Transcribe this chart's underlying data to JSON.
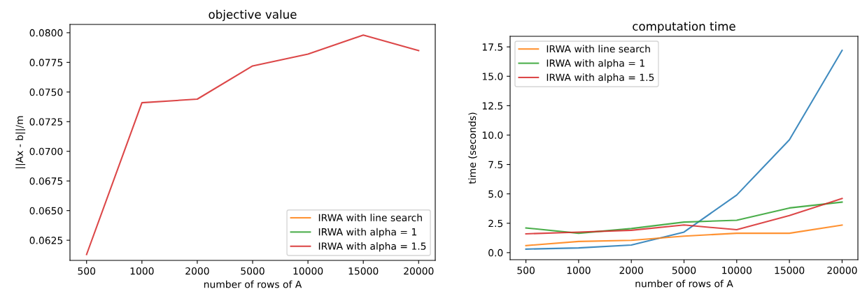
{
  "chart_data": [
    {
      "type": "line",
      "title": "objective value",
      "xlabel": "number of rows of A",
      "ylabel": "||Ax - b||/m",
      "categories": [
        "500",
        "1000",
        "2000",
        "5000",
        "10000",
        "15000",
        "20000"
      ],
      "ylim": [
        0.0608,
        0.0807
      ],
      "yticks": [
        {
          "value": 0.0625,
          "label": "0.0625"
        },
        {
          "value": 0.065,
          "label": "0.0650"
        },
        {
          "value": 0.0675,
          "label": "0.0675"
        },
        {
          "value": 0.07,
          "label": "0.0700"
        },
        {
          "value": 0.0725,
          "label": "0.0725"
        },
        {
          "value": 0.075,
          "label": "0.0750"
        },
        {
          "value": 0.0775,
          "label": "0.0775"
        },
        {
          "value": 0.08,
          "label": "0.0800"
        }
      ],
      "legend": "bottom right",
      "grid": false,
      "series": [
        {
          "color": "#1f77b4",
          "values": [
            null,
            null,
            null,
            null,
            null,
            null,
            null
          ]
        },
        {
          "name": "IRWA with line search",
          "color": "#ff7f0e",
          "values": [
            null,
            null,
            null,
            null,
            null,
            null,
            null
          ]
        },
        {
          "name": "IRWA with alpha = 1",
          "color": "#2ca02c",
          "values": [
            null,
            null,
            null,
            null,
            null,
            null,
            null
          ]
        },
        {
          "name": "IRWA with alpha = 1.5",
          "color": "#d62728",
          "values": [
            0.0613,
            0.0741,
            0.0744,
            0.0772,
            0.0782,
            0.0798,
            0.0785
          ]
        }
      ]
    },
    {
      "type": "line",
      "title": "computation time",
      "xlabel": "number of rows of A",
      "ylabel": "time (seconds)",
      "categories": [
        "500",
        "1000",
        "2000",
        "5000",
        "10000",
        "15000",
        "20000"
      ],
      "ylim": [
        -0.6,
        18.4
      ],
      "yticks": [
        {
          "value": 0,
          "label": "0.0"
        },
        {
          "value": 2.5,
          "label": "2.5"
        },
        {
          "value": 5,
          "label": "5.0"
        },
        {
          "value": 7.5,
          "label": "7.5"
        },
        {
          "value": 10,
          "label": "10.0"
        },
        {
          "value": 12.5,
          "label": "12.5"
        },
        {
          "value": 15,
          "label": "15.0"
        },
        {
          "value": 17.5,
          "label": "17.5"
        }
      ],
      "legend": "top left",
      "grid": false,
      "series": [
        {
          "color": "#1f77b4",
          "values": [
            0.3,
            0.4,
            0.65,
            1.75,
            4.9,
            9.6,
            17.2
          ]
        },
        {
          "name": "IRWA with line search",
          "color": "#ff7f0e",
          "values": [
            0.6,
            0.95,
            1.05,
            1.4,
            1.65,
            1.65,
            2.35
          ]
        },
        {
          "name": "IRWA with alpha = 1",
          "color": "#2ca02c",
          "values": [
            2.1,
            1.65,
            2.05,
            2.6,
            2.75,
            3.8,
            4.3
          ]
        },
        {
          "name": "IRWA with alpha = 1.5",
          "color": "#d62728",
          "values": [
            1.6,
            1.75,
            1.9,
            2.35,
            1.95,
            3.15,
            4.6
          ]
        }
      ]
    }
  ]
}
